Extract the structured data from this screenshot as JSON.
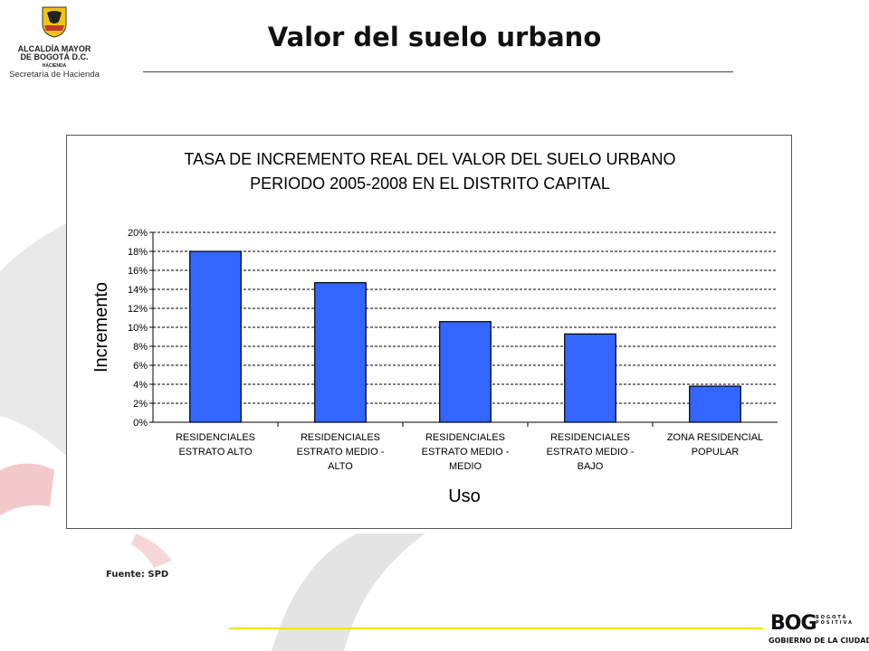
{
  "header": {
    "logo_line1": "ALCALDÍA MAYOR",
    "logo_line2": "DE BOGOTÁ D.C.",
    "logo_line3": "HACIENDA",
    "logo_line4": "Secretaría de Hacienda",
    "title": "Valor del suelo urbano"
  },
  "chart_data": {
    "type": "bar",
    "title_line1": "TASA DE INCREMENTO REAL DEL VALOR DEL SUELO URBANO",
    "title_line2": "PERIODO 2005-2008 EN EL DISTRITO CAPITAL",
    "xlabel": "Uso",
    "ylabel": "Incremento",
    "ylim": [
      0,
      20
    ],
    "y_unit": "%",
    "y_ticks": [
      0,
      2,
      4,
      6,
      8,
      10,
      12,
      14,
      16,
      18,
      20
    ],
    "grid": "horizontal-dashed",
    "legend": "none",
    "bar_color": "#3366ff",
    "categories": [
      [
        "RESIDENCIALES",
        "ESTRATO ALTO"
      ],
      [
        "RESIDENCIALES",
        "ESTRATO MEDIO -",
        "ALTO"
      ],
      [
        "RESIDENCIALES",
        "ESTRATO MEDIO -",
        "MEDIO"
      ],
      [
        "RESIDENCIALES",
        "ESTRATO MEDIO -",
        "BAJO"
      ],
      [
        "ZONA RESIDENCIAL",
        "POPULAR"
      ]
    ],
    "values": [
      18.0,
      14.7,
      10.6,
      9.3,
      3.8
    ]
  },
  "source": "Fuente: SPD",
  "footer": {
    "brand": "BOG",
    "slogan": "BOGOTÁ POSITIVA",
    "tagline": "GOBIERNO DE LA CIUDAD"
  }
}
